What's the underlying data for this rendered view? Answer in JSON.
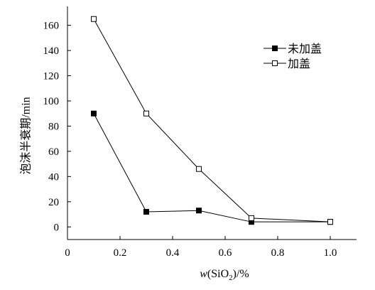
{
  "chart_data": {
    "type": "line",
    "xlabel_italic": "w",
    "xlabel_main": "(SiO",
    "xlabel_sub": "2",
    "xlabel_tail": ")/%",
    "ylabel": "泡沫半衰期/min",
    "xlim": [
      0,
      1.1
    ],
    "ylim": [
      -10,
      175
    ],
    "x_ticks": [
      0,
      0.2,
      0.4,
      0.6,
      0.8,
      1.0
    ],
    "x_tick_labels": [
      "0",
      "0.2",
      "0.4",
      "0.6",
      "0.8",
      "1.0"
    ],
    "y_ticks": [
      0,
      20,
      40,
      60,
      80,
      100,
      120,
      140,
      160
    ],
    "y_tick_labels": [
      "0",
      "20",
      "40",
      "60",
      "80",
      "100",
      "120",
      "140",
      "160"
    ],
    "grid": false,
    "legend_position": "top-right",
    "series": [
      {
        "name": "未加盖",
        "marker": "filled-square",
        "x": [
          0.1,
          0.3,
          0.5,
          0.7,
          1.0
        ],
        "y": [
          90,
          12,
          13,
          4,
          4
        ]
      },
      {
        "name": "加盖",
        "marker": "open-square",
        "x": [
          0.1,
          0.3,
          0.5,
          0.7,
          1.0
        ],
        "y": [
          165,
          90,
          46,
          7,
          4
        ]
      }
    ]
  }
}
